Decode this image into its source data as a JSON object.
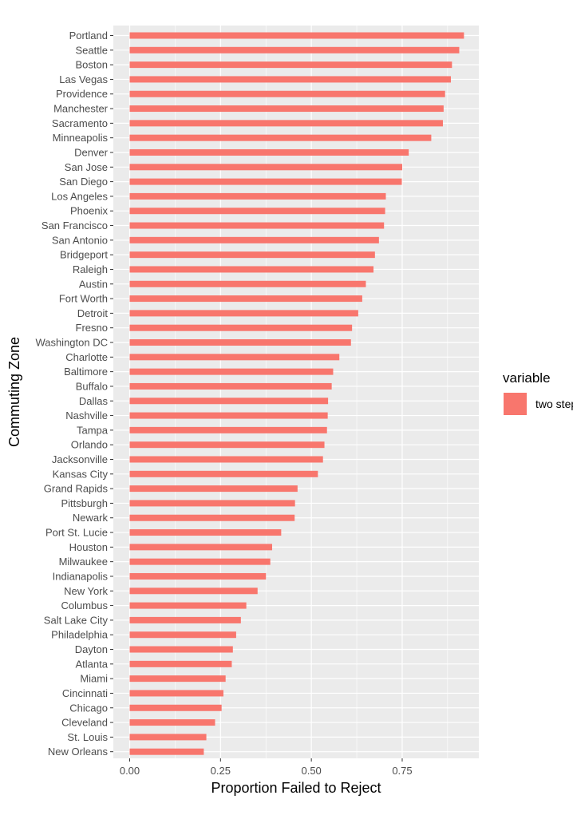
{
  "chart_data": {
    "type": "bar",
    "orientation": "horizontal",
    "xlabel": "Proportion Failed to Reject",
    "ylabel": "Commuting Zone",
    "xlim": [
      -0.045,
      0.96
    ],
    "x_ticks": [
      0,
      0.25,
      0.5,
      0.75
    ],
    "x_tick_labels": [
      "0.00",
      "0.25",
      "0.50",
      "0.75"
    ],
    "grid": true,
    "legend": {
      "title": "variable",
      "position": "right",
      "entries": [
        "two step"
      ]
    },
    "series": [
      {
        "name": "two step",
        "color": "#F8766D"
      }
    ],
    "categories": [
      "Portland",
      "Seattle",
      "Boston",
      "Las Vegas",
      "Providence",
      "Manchester",
      "Sacramento",
      "Minneapolis",
      "Denver",
      "San Jose",
      "San Diego",
      "Los Angeles",
      "Phoenix",
      "San Francisco",
      "San Antonio",
      "Bridgeport",
      "Raleigh",
      "Austin",
      "Fort Worth",
      "Detroit",
      "Fresno",
      "Washington DC",
      "Charlotte",
      "Baltimore",
      "Buffalo",
      "Dallas",
      "Nashville",
      "Tampa",
      "Orlando",
      "Jacksonville",
      "Kansas City",
      "Grand Rapids",
      "Pittsburgh",
      "Newark",
      "Port St. Lucie",
      "Houston",
      "Milwaukee",
      "Indianapolis",
      "New York",
      "Columbus",
      "Salt Lake City",
      "Philadelphia",
      "Dayton",
      "Atlanta",
      "Miami",
      "Cincinnati",
      "Chicago",
      "Cleveland",
      "St. Louis",
      "New Orleans"
    ],
    "values": [
      0.92,
      0.907,
      0.887,
      0.884,
      0.868,
      0.864,
      0.862,
      0.83,
      0.768,
      0.75,
      0.749,
      0.705,
      0.703,
      0.7,
      0.686,
      0.675,
      0.671,
      0.65,
      0.64,
      0.629,
      0.612,
      0.609,
      0.577,
      0.56,
      0.556,
      0.546,
      0.545,
      0.543,
      0.536,
      0.532,
      0.518,
      0.462,
      0.455,
      0.454,
      0.417,
      0.392,
      0.387,
      0.375,
      0.352,
      0.321,
      0.306,
      0.293,
      0.284,
      0.281,
      0.264,
      0.258,
      0.253,
      0.235,
      0.211,
      0.204
    ]
  }
}
